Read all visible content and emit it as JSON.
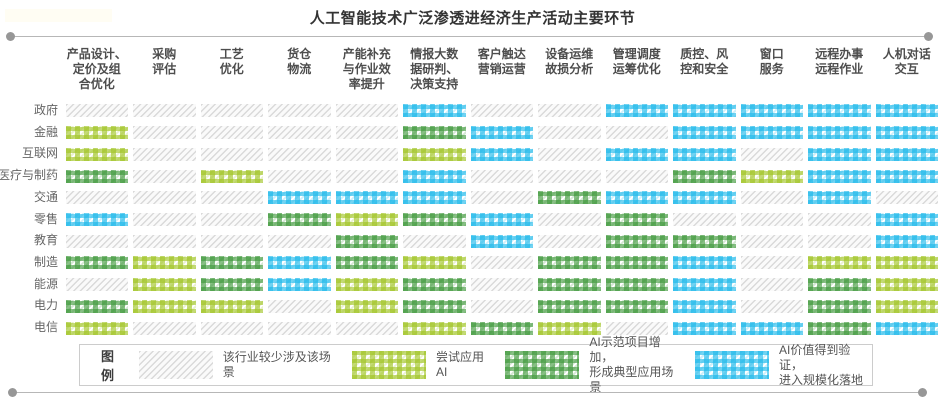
{
  "page": {
    "title": "人工智能技术广泛渗透进经济生产活动主要环节"
  },
  "chart_data": {
    "type": "heatmap",
    "title": "人工智能技术广泛渗透进经济生产活动主要环节",
    "columns": [
      "产品设计、\n定价及组\n合优化",
      "采购\n评估",
      "工艺\n优化",
      "货仓\n物流",
      "产能补充\n与作业效\n率提升",
      "情报大数\n据研判、\n决策支持",
      "客户触达\n营销运营",
      "设备运维\n故损分析",
      "管理调度\n运筹优化",
      "质控、风\n控和安全",
      "窗口\n服务",
      "远程办事\n远程作业",
      "人机对话\n交互"
    ],
    "rows": [
      "政府",
      "金融",
      "互联网",
      "医疗与制药",
      "交通",
      "零售",
      "教育",
      "制造",
      "能源",
      "电力",
      "电信"
    ],
    "value_levels": {
      "0": "该行业较少涉及该场景",
      "1": "尝试应用AI",
      "2": "AI示范项目增加，形成典型应用场景",
      "3": "AI价值得到验证，进入规模化落地"
    },
    "level_colors": {
      "0": "#d9d9d9",
      "1": "#a0c423",
      "2": "#3e983a",
      "3": "#1cb8ea"
    },
    "values": [
      [
        0,
        0,
        0,
        0,
        0,
        3,
        0,
        0,
        3,
        3,
        3,
        3,
        3
      ],
      [
        1,
        0,
        0,
        0,
        0,
        2,
        3,
        0,
        0,
        3,
        3,
        3,
        3
      ],
      [
        1,
        0,
        0,
        0,
        0,
        1,
        3,
        0,
        3,
        3,
        0,
        3,
        3
      ],
      [
        2,
        0,
        1,
        0,
        0,
        3,
        0,
        0,
        0,
        2,
        1,
        3,
        3
      ],
      [
        0,
        0,
        0,
        3,
        3,
        3,
        0,
        2,
        3,
        3,
        0,
        3,
        0
      ],
      [
        3,
        0,
        0,
        2,
        1,
        2,
        3,
        0,
        2,
        0,
        0,
        0,
        3
      ],
      [
        0,
        0,
        0,
        0,
        2,
        0,
        3,
        0,
        2,
        2,
        0,
        0,
        3
      ],
      [
        2,
        1,
        2,
        3,
        2,
        1,
        0,
        2,
        2,
        3,
        0,
        1,
        1
      ],
      [
        0,
        1,
        2,
        3,
        1,
        2,
        0,
        2,
        2,
        3,
        0,
        2,
        1
      ],
      [
        2,
        1,
        1,
        0,
        1,
        2,
        0,
        2,
        2,
        3,
        0,
        2,
        1
      ],
      [
        1,
        0,
        0,
        0,
        0,
        1,
        2,
        1,
        0,
        3,
        3,
        2,
        3
      ]
    ],
    "legend_position": "bottom",
    "grid": "off"
  },
  "legend": {
    "title": "图例",
    "items": [
      {
        "level": 0,
        "label": "该行业较少涉及该场景"
      },
      {
        "level": 1,
        "label": "尝试应用AI"
      },
      {
        "level": 2,
        "label": "AI示范项目增加，\n形成典型应用场景"
      },
      {
        "level": 3,
        "label": "AI价值得到验证，\n进入规模化落地"
      }
    ]
  }
}
